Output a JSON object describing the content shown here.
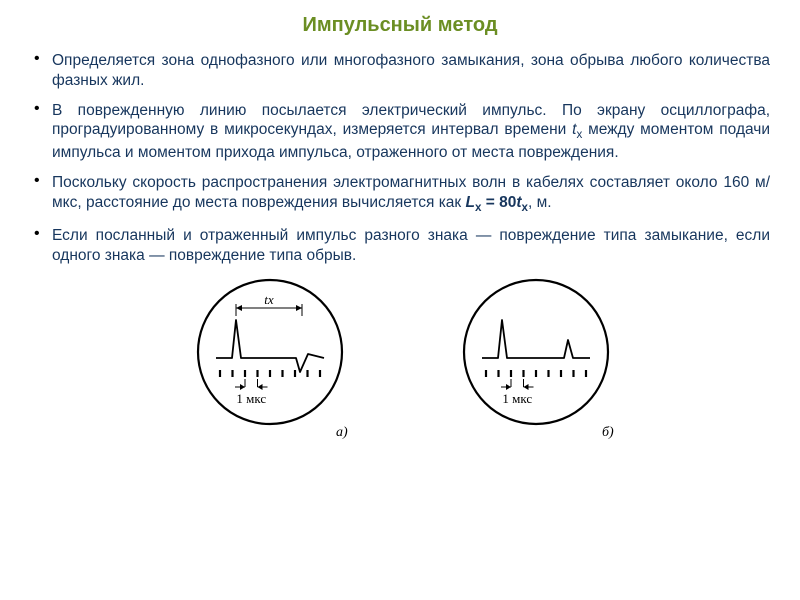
{
  "title": {
    "text": "Импульсный метод",
    "color": "#6b8e23",
    "fontsize": 20
  },
  "body": {
    "color": "#17365d",
    "fontsize": 15.5,
    "lineheight": 1.28
  },
  "bullets": {
    "b1_pre": "Определяется ",
    "b1_accent": "зона однофазного или многофазного замыкания",
    "b1_post": ", зона обрыва любого количества фазных жил.",
    "b2_pre": "В поврежденную линию посылается электрический импульс. По экрану осциллографа, проградуированному в микросекундах, измеряется интервал времени ",
    "b2_var": "t",
    "b2_sub": "x",
    "b2_post": " между моментом подачи импульса и моментом прихода импульса, отраженного от места повреждения.",
    "b3_pre": "Поскольку скорость распространения электромагнитных волн в кабелях составляет около 160 м/мкс, расстояние до места повреждения вычисляется как ",
    "b3_formula_L": "L",
    "b3_formula_Lsub": "x",
    "b3_formula_mid": " = 80",
    "b3_formula_t": "t",
    "b3_formula_tsub": "x",
    "b3_post": ", м.",
    "b4": "Если посланный и отраженный импульс разного знака — повреждение типа замыкание, если одного знака — повреждение типа обрыв."
  },
  "figure": {
    "stroke": "#000000",
    "label_tx": "tx",
    "tick_label": "1 мкс",
    "sub_a": "а)",
    "sub_b": "б)",
    "circle_r": 72,
    "gap": 50
  }
}
